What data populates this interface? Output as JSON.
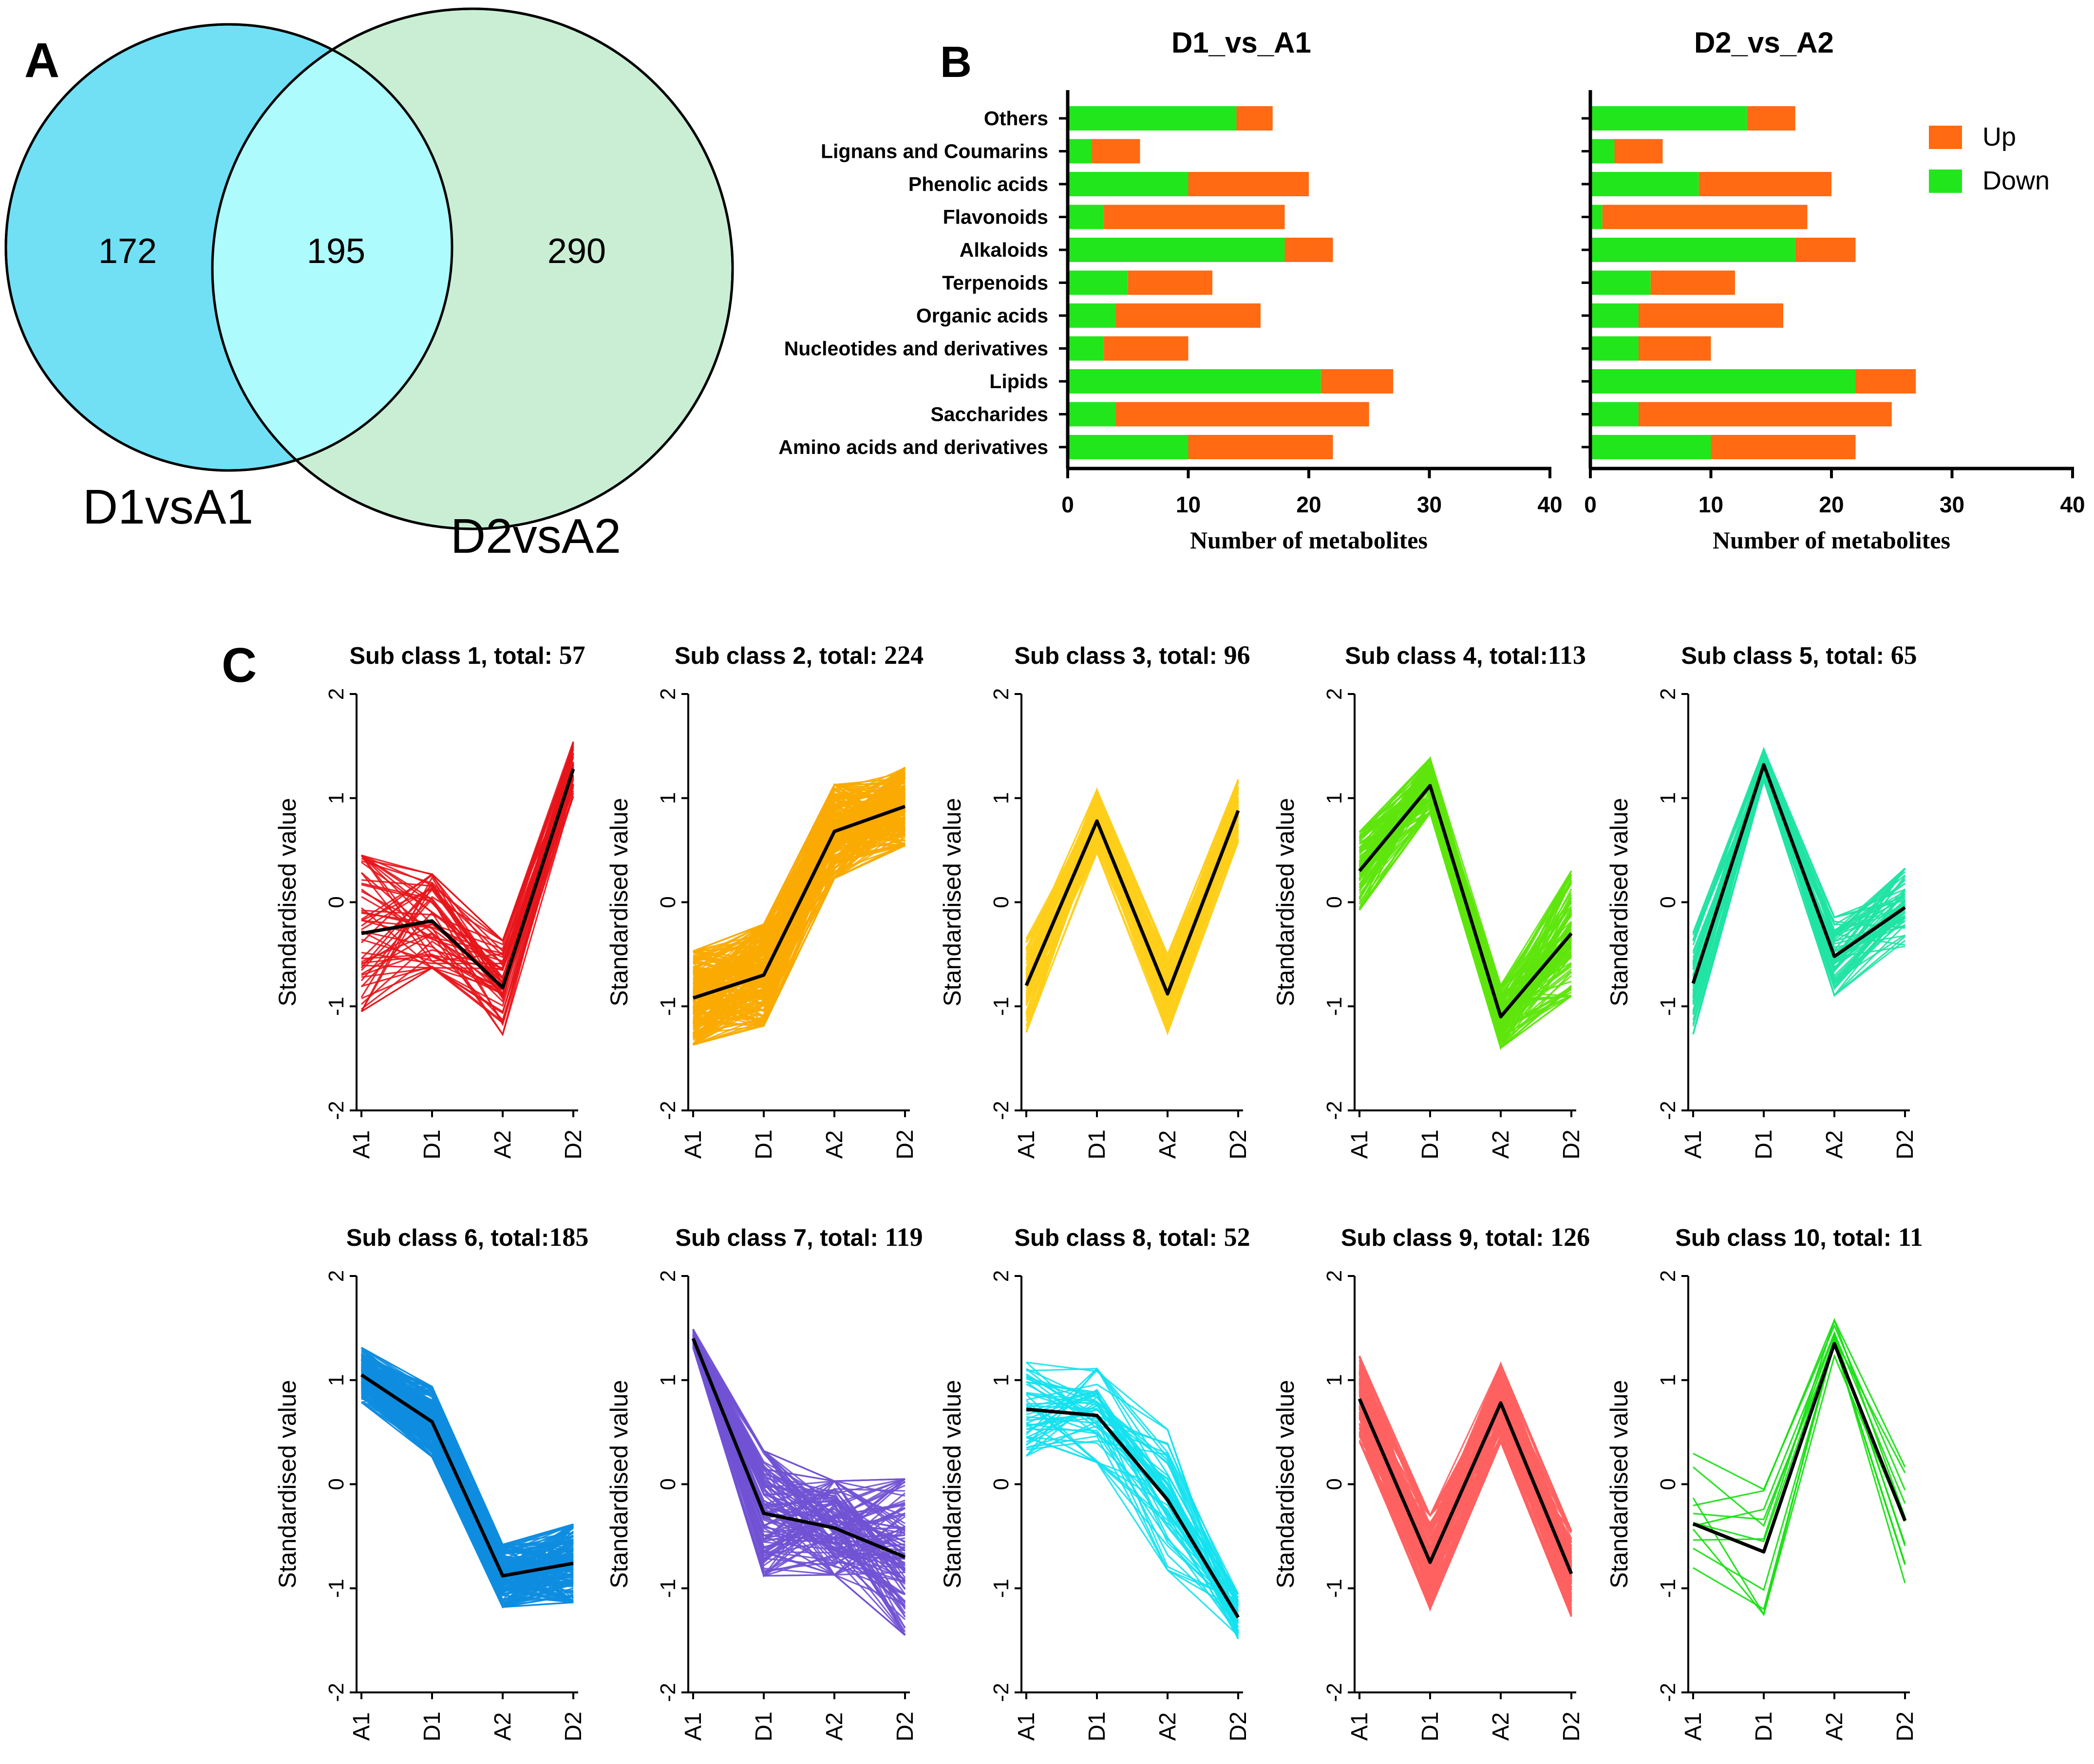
{
  "colors": {
    "venn_left": "#71e0f5",
    "venn_right": "#c9eed4",
    "venn_overlap": "#aefbfd",
    "up": "#ff6a13",
    "down": "#22e61c",
    "mean_line": "#000000"
  },
  "chart_data": [
    {
      "type": "venn",
      "panel": "A",
      "sets": [
        "D1vsA1",
        "D2vsA2"
      ],
      "counts": {
        "only_first": "172",
        "intersection": "195",
        "only_second": "290"
      }
    },
    {
      "type": "bar",
      "panel": "B",
      "stacked": true,
      "orientation": "horizontal",
      "title": "D1_vs_A1",
      "xlabel": "Number of metabolites",
      "xlim": [
        0,
        40
      ],
      "xticks": [
        "0",
        "10",
        "20",
        "30",
        "40"
      ],
      "categories": [
        "Others",
        "Lignans and Coumarins",
        "Phenolic acids",
        "Flavonoids",
        "Alkaloids",
        "Terpenoids",
        "Organic acids",
        "Nucleotides and derivatives",
        "Lipids",
        "Saccharides",
        "Amino acids and derivatives"
      ],
      "series": [
        {
          "name": "Down",
          "values": [
            14,
            2,
            10,
            3,
            18,
            5,
            4,
            3,
            21,
            4,
            10
          ]
        },
        {
          "name": "Up",
          "values": [
            3,
            4,
            10,
            15,
            4,
            7,
            12,
            7,
            6,
            21,
            12
          ]
        }
      ]
    },
    {
      "type": "bar",
      "panel": "B",
      "stacked": true,
      "orientation": "horizontal",
      "title": "D2_vs_A2",
      "xlabel": "Number of metabolites",
      "xlim": [
        0,
        40
      ],
      "xticks": [
        "0",
        "10",
        "20",
        "30",
        "40"
      ],
      "categories": [
        "Others",
        "Lignans and Coumarins",
        "Phenolic acids",
        "Flavonoids",
        "Alkaloids",
        "Terpenoids",
        "Organic acids",
        "Nucleotides and derivatives",
        "Lipids",
        "Saccharides",
        "Amino acids and derivatives"
      ],
      "series": [
        {
          "name": "Down",
          "values": [
            13,
            2,
            9,
            1,
            17,
            5,
            4,
            4,
            22,
            4,
            10
          ]
        },
        {
          "name": "Up",
          "values": [
            4,
            4,
            11,
            17,
            5,
            7,
            12,
            6,
            5,
            21,
            12
          ]
        }
      ],
      "legend": {
        "position": "top-right",
        "labels": [
          "Up",
          "Down"
        ]
      }
    },
    {
      "type": "line",
      "panel": "C",
      "ylabel": "Standardised value",
      "ylim": [
        -2,
        2
      ],
      "yticks": [
        "2",
        "1",
        "0",
        "-1",
        "-2"
      ],
      "x": [
        "A1",
        "D1",
        "A2",
        "D2"
      ],
      "subclasses": [
        {
          "title": "Sub class 1, total: ",
          "total": "57",
          "color": "#e8141b",
          "mean": [
            -0.3,
            -0.18,
            -0.82,
            1.28
          ],
          "spread": [
            1.0,
            0.6,
            0.6,
            0.35
          ],
          "n": 57
        },
        {
          "title": "Sub class 2, total: ",
          "total": "224",
          "color": "#f9aa00",
          "mean": [
            -0.92,
            -0.7,
            0.68,
            0.92
          ],
          "spread": [
            0.6,
            0.65,
            0.6,
            0.5
          ],
          "n": 224
        },
        {
          "title": "Sub class 3, total: ",
          "total": "96",
          "color": "#ffce1a",
          "mean": [
            -0.8,
            0.78,
            -0.88,
            0.88
          ],
          "spread": [
            0.6,
            0.4,
            0.5,
            0.4
          ],
          "n": 96
        },
        {
          "title": "Sub class 4, total:",
          "total": "113",
          "color": "#5ee60c",
          "mean": [
            0.3,
            1.12,
            -1.1,
            -0.3
          ],
          "spread": [
            0.5,
            0.35,
            0.4,
            0.8
          ],
          "n": 113
        },
        {
          "title": "Sub class 5, total: ",
          "total": "65",
          "color": "#1fe3a3",
          "mean": [
            -0.78,
            1.32,
            -0.52,
            -0.05
          ],
          "spread": [
            0.65,
            0.2,
            0.5,
            0.5
          ],
          "n": 65
        },
        {
          "title": "Sub class 6, total:",
          "total": "185",
          "color": "#0e8de0",
          "mean": [
            1.05,
            0.6,
            -0.88,
            -0.76
          ],
          "spread": [
            0.35,
            0.45,
            0.4,
            0.5
          ],
          "n": 185
        },
        {
          "title": "Sub class 7, total: ",
          "total": "119",
          "color": "#7152d4",
          "mean": [
            1.4,
            -0.28,
            -0.42,
            -0.7
          ],
          "spread": [
            0.12,
            0.8,
            0.6,
            1.0
          ],
          "n": 119
        },
        {
          "title": "Sub class 8, total: ",
          "total": "52",
          "color": "#14e1ee",
          "mean": [
            0.72,
            0.66,
            -0.15,
            -1.28
          ],
          "spread": [
            0.6,
            0.6,
            0.9,
            0.3
          ],
          "n": 52
        },
        {
          "title": "Sub class 9, total: ",
          "total": "126",
          "color": "#ff6060",
          "mean": [
            0.82,
            -0.75,
            0.78,
            -0.86
          ],
          "spread": [
            0.55,
            0.6,
            0.5,
            0.55
          ],
          "n": 126
        },
        {
          "title": "Sub class 10, total: ",
          "total": "11",
          "color": "#14df0e",
          "mean": [
            -0.38,
            -0.65,
            1.35,
            -0.35
          ],
          "spread": [
            0.9,
            0.8,
            0.3,
            0.8
          ],
          "n": 11
        }
      ]
    }
  ],
  "labels": {
    "panel_a": "A",
    "panel_b": "B",
    "panel_c": "C",
    "venn_label_first": "D1vsA1",
    "venn_label_second": "D2vsA2"
  }
}
